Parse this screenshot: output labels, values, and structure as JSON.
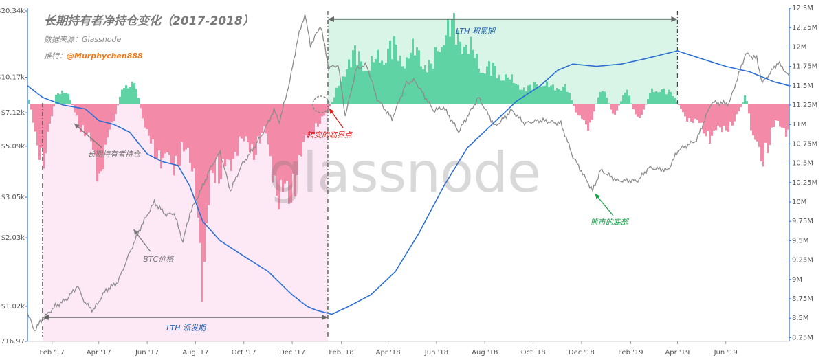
{
  "header": {
    "title": "长期持有者净持仓变化（2017-2018）",
    "source": "数据来源：Glassnode",
    "author_label": "推特：",
    "author_handle": "@Murphychen888"
  },
  "watermark": "glassnode",
  "chart_data": {
    "type": "line",
    "title": "长期持有者净持仓变化（2017-2018）",
    "x_range": [
      "2017-01-01",
      "2019-08-20"
    ],
    "x_ticks": [
      "Feb '17",
      "Apr '17",
      "Jun '17",
      "Aug '17",
      "Oct '17",
      "Dec '17",
      "Feb '18",
      "Apr '18",
      "Jun '18",
      "Aug '18",
      "Oct '18",
      "Dec '18",
      "Feb '19",
      "Apr '19",
      "Jun '19"
    ],
    "y_left": {
      "scale": "log",
      "ticks": [
        {
          "label": "$20.34k",
          "value": 20340
        },
        {
          "label": "$10.17k",
          "value": 10170
        },
        {
          "label": "$7.12k",
          "value": 7120
        },
        {
          "label": "$5.09k",
          "value": 5090
        },
        {
          "label": "$3.05k",
          "value": 3050
        },
        {
          "label": "$2.03k",
          "value": 2030
        },
        {
          "label": "$1.02k",
          "value": 1020
        },
        {
          "label": "$716.97",
          "value": 716.97
        }
      ]
    },
    "y_right": {
      "scale": "linear",
      "range": [
        8200000,
        12500000
      ],
      "ticks": [
        "12.5M",
        "12.25M",
        "12M",
        "11.75M",
        "11.5M",
        "11.25M",
        "11M",
        "10.75M",
        "10.5M",
        "10.25M",
        "10M",
        "9.75M",
        "9.5M",
        "9.25M",
        "9M",
        "8.75M",
        "8.5M",
        "8.25M"
      ]
    },
    "series": [
      {
        "name": "BTC价格",
        "color": "#8c8c8c",
        "axis": "left",
        "points": [
          [
            "2017-01-01",
            950
          ],
          [
            "2017-01-10",
            800
          ],
          [
            "2017-01-20",
            900
          ],
          [
            "2017-02-05",
            1020
          ],
          [
            "2017-02-20",
            1100
          ],
          [
            "2017-03-05",
            1250
          ],
          [
            "2017-03-15",
            1050
          ],
          [
            "2017-03-25",
            980
          ],
          [
            "2017-04-10",
            1200
          ],
          [
            "2017-04-25",
            1300
          ],
          [
            "2017-05-10",
            1750
          ],
          [
            "2017-05-25",
            2300
          ],
          [
            "2017-06-10",
            2900
          ],
          [
            "2017-06-25",
            2550
          ],
          [
            "2017-07-05",
            2600
          ],
          [
            "2017-07-16",
            1950
          ],
          [
            "2017-07-25",
            2600
          ],
          [
            "2017-08-10",
            3400
          ],
          [
            "2017-08-20",
            4100
          ],
          [
            "2017-09-01",
            4800
          ],
          [
            "2017-09-14",
            3250
          ],
          [
            "2017-09-28",
            4200
          ],
          [
            "2017-10-10",
            4800
          ],
          [
            "2017-10-25",
            5800
          ],
          [
            "2017-11-08",
            7300
          ],
          [
            "2017-11-15",
            6500
          ],
          [
            "2017-11-28",
            9800
          ],
          [
            "2017-12-08",
            15000
          ],
          [
            "2017-12-17",
            19200
          ],
          [
            "2017-12-24",
            14000
          ],
          [
            "2018-01-06",
            17100
          ],
          [
            "2018-01-16",
            11200
          ],
          [
            "2018-01-28",
            11500
          ],
          [
            "2018-02-06",
            6900
          ],
          [
            "2018-02-20",
            11100
          ],
          [
            "2018-03-05",
            11500
          ],
          [
            "2018-03-18",
            8200
          ],
          [
            "2018-04-06",
            6700
          ],
          [
            "2018-04-24",
            9600
          ],
          [
            "2018-05-05",
            9800
          ],
          [
            "2018-05-28",
            7300
          ],
          [
            "2018-06-10",
            7500
          ],
          [
            "2018-06-29",
            5900
          ],
          [
            "2018-07-24",
            8300
          ],
          [
            "2018-08-14",
            6200
          ],
          [
            "2018-09-04",
            7300
          ],
          [
            "2018-09-20",
            6400
          ],
          [
            "2018-10-10",
            6600
          ],
          [
            "2018-11-05",
            6400
          ],
          [
            "2018-11-20",
            4600
          ],
          [
            "2018-12-15",
            3250
          ],
          [
            "2018-12-25",
            4000
          ],
          [
            "2019-01-15",
            3600
          ],
          [
            "2019-02-10",
            3600
          ],
          [
            "2019-02-24",
            4100
          ],
          [
            "2019-03-20",
            4000
          ],
          [
            "2019-04-02",
            4900
          ],
          [
            "2019-04-25",
            5400
          ],
          [
            "2019-05-14",
            7900
          ],
          [
            "2019-06-05",
            7800
          ],
          [
            "2019-06-26",
            12900
          ],
          [
            "2019-07-10",
            12300
          ],
          [
            "2019-07-17",
            9600
          ],
          [
            "2019-08-06",
            11800
          ],
          [
            "2019-08-20",
            10300
          ]
        ]
      },
      {
        "name": "长期持有者持仓",
        "color": "#2b6fd6",
        "axis": "right",
        "points": [
          [
            "2017-01-01",
            11500000
          ],
          [
            "2017-01-20",
            11350000
          ],
          [
            "2017-02-15",
            11250000
          ],
          [
            "2017-03-15",
            11200000
          ],
          [
            "2017-04-01",
            11050000
          ],
          [
            "2017-04-20",
            11000000
          ],
          [
            "2017-05-10",
            10900000
          ],
          [
            "2017-06-01",
            10620000
          ],
          [
            "2017-06-20",
            10520000
          ],
          [
            "2017-07-10",
            10470000
          ],
          [
            "2017-07-25",
            10200000
          ],
          [
            "2017-08-10",
            9750000
          ],
          [
            "2017-09-01",
            9500000
          ],
          [
            "2017-10-01",
            9300000
          ],
          [
            "2017-11-01",
            9100000
          ],
          [
            "2017-12-01",
            8800000
          ],
          [
            "2017-12-20",
            8650000
          ],
          [
            "2018-01-01",
            8600000
          ],
          [
            "2018-01-20",
            8550000
          ],
          [
            "2018-02-10",
            8650000
          ],
          [
            "2018-03-10",
            8800000
          ],
          [
            "2018-04-10",
            9100000
          ],
          [
            "2018-05-10",
            9600000
          ],
          [
            "2018-06-10",
            10200000
          ],
          [
            "2018-07-10",
            10700000
          ],
          [
            "2018-08-10",
            11000000
          ],
          [
            "2018-09-10",
            11300000
          ],
          [
            "2018-10-10",
            11500000
          ],
          [
            "2018-11-01",
            11700000
          ],
          [
            "2018-11-20",
            11780000
          ],
          [
            "2018-12-20",
            11750000
          ],
          [
            "2019-01-20",
            11780000
          ],
          [
            "2019-02-20",
            11850000
          ],
          [
            "2019-03-20",
            11920000
          ],
          [
            "2019-04-01",
            11950000
          ],
          [
            "2019-05-01",
            11850000
          ],
          [
            "2019-06-01",
            11750000
          ],
          [
            "2019-07-01",
            11680000
          ],
          [
            "2019-08-01",
            11550000
          ],
          [
            "2019-08-20",
            11500000
          ]
        ]
      }
    ],
    "net_position_bars": {
      "note": "长期持有者净持仓变化 (positive = green, negative = pink)",
      "positive_color": "#5fd3a4",
      "negative_color": "#f28aa8",
      "relative_values": [
        [
          "2017-01-01",
          0.15
        ],
        [
          "2017-01-10",
          -0.5
        ],
        [
          "2017-01-20",
          -0.9
        ],
        [
          "2017-02-05",
          0.15
        ],
        [
          "2017-02-20",
          0.2
        ],
        [
          "2017-03-05",
          -0.3
        ],
        [
          "2017-03-20",
          -0.6
        ],
        [
          "2017-04-01",
          -1.1
        ],
        [
          "2017-04-15",
          -0.4
        ],
        [
          "2017-05-01",
          0.3
        ],
        [
          "2017-05-15",
          0.35
        ],
        [
          "2017-06-01",
          -0.6
        ],
        [
          "2017-06-15",
          -0.8
        ],
        [
          "2017-07-01",
          -1.0
        ],
        [
          "2017-07-15",
          -0.7
        ],
        [
          "2017-08-01",
          -1.2
        ],
        [
          "2017-08-10",
          -3.1
        ],
        [
          "2017-08-20",
          -1.0
        ],
        [
          "2017-09-10",
          -1.1
        ],
        [
          "2017-09-25",
          -0.5
        ],
        [
          "2017-10-10",
          -0.8
        ],
        [
          "2017-10-25",
          -0.4
        ],
        [
          "2017-11-10",
          -1.3
        ],
        [
          "2017-11-25",
          -1.6
        ],
        [
          "2017-12-10",
          -0.8
        ],
        [
          "2017-12-25",
          -0.4
        ],
        [
          "2018-01-10",
          -0.2
        ],
        [
          "2018-01-20",
          0.05
        ],
        [
          "2018-02-05",
          0.6
        ],
        [
          "2018-02-20",
          0.8
        ],
        [
          "2018-03-05",
          0.55
        ],
        [
          "2018-03-20",
          0.75
        ],
        [
          "2018-04-05",
          0.9
        ],
        [
          "2018-04-20",
          0.7
        ],
        [
          "2018-05-05",
          0.85
        ],
        [
          "2018-05-25",
          0.55
        ],
        [
          "2018-06-10",
          1.2
        ],
        [
          "2018-06-25",
          1.15
        ],
        [
          "2018-07-10",
          0.9
        ],
        [
          "2018-07-25",
          0.6
        ],
        [
          "2018-08-10",
          0.55
        ],
        [
          "2018-08-25",
          0.45
        ],
        [
          "2018-09-10",
          0.3
        ],
        [
          "2018-09-25",
          0.25
        ],
        [
          "2018-10-10",
          0.35
        ],
        [
          "2018-10-25",
          0.25
        ],
        [
          "2018-11-10",
          0.3
        ],
        [
          "2018-11-25",
          -0.2
        ],
        [
          "2018-12-10",
          -0.35
        ],
        [
          "2018-12-25",
          0.3
        ],
        [
          "2019-01-10",
          -0.2
        ],
        [
          "2019-01-25",
          0.25
        ],
        [
          "2019-02-10",
          -0.3
        ],
        [
          "2019-02-25",
          0.2
        ],
        [
          "2019-03-10",
          0.25
        ],
        [
          "2019-03-25",
          0.15
        ],
        [
          "2019-04-10",
          -0.2
        ],
        [
          "2019-04-25",
          -0.3
        ],
        [
          "2019-05-10",
          -0.5
        ],
        [
          "2019-05-25",
          -0.4
        ],
        [
          "2019-06-10",
          -0.3
        ],
        [
          "2019-06-25",
          0.15
        ],
        [
          "2019-07-05",
          -0.6
        ],
        [
          "2019-07-15",
          -0.9
        ],
        [
          "2019-08-01",
          -0.3
        ],
        [
          "2019-08-15",
          -0.4
        ]
      ]
    },
    "regions": [
      {
        "label": "LTH 派发期",
        "start": "2017-01-20",
        "end": "2018-01-15",
        "color": "#fde8f5"
      },
      {
        "label": "LTH 积累期",
        "start": "2018-01-15",
        "end": "2019-04-01",
        "color": "#d9f5e7"
      }
    ],
    "annotations": [
      {
        "text": "转变的临界点",
        "color": "#e0201b",
        "date": "2018-01-15"
      },
      {
        "text": "熊市的底部",
        "color": "#1aa34a",
        "date": "2018-12-15"
      },
      {
        "text": "长期持有者持仓",
        "color": "#7a7a7a",
        "date": "2017-03-10"
      },
      {
        "text": "BTC价格",
        "color": "#7a7a7a",
        "date": "2017-06-25"
      }
    ],
    "colors": {
      "price": "#8c8c8c",
      "holdings": "#2b6fd6",
      "axis_right": "#2b6fd6"
    }
  }
}
